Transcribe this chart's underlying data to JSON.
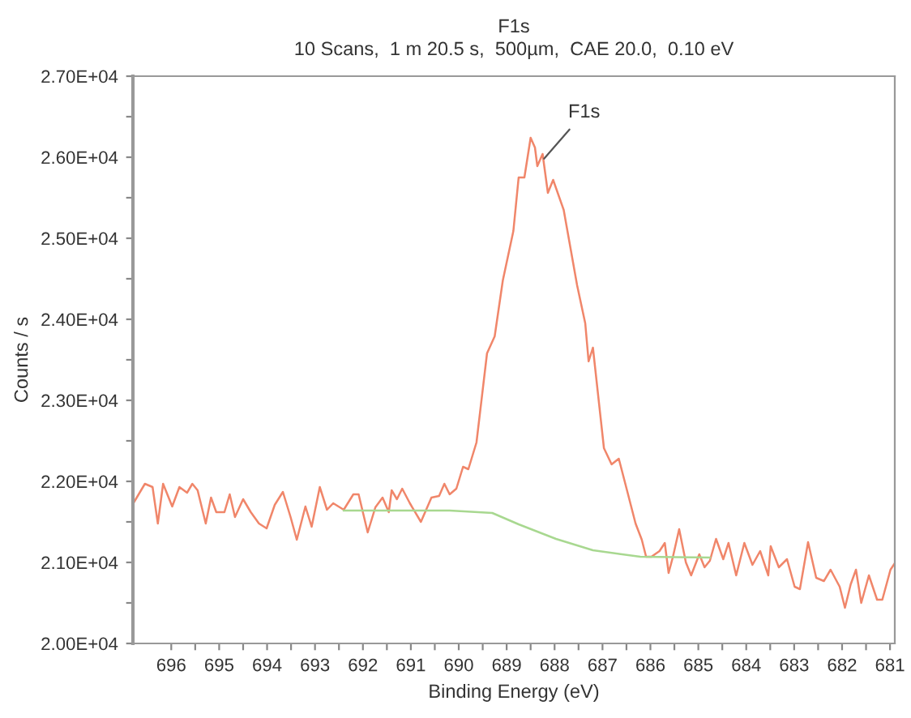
{
  "chart_data": {
    "type": "line",
    "title": "F1s",
    "subtitle": "10 Scans,  1 m 20.5 s,  500µm,  CAE 20.0,  0.10 eV",
    "xlabel": "Binding Energy (eV)",
    "ylabel": "Counts / s",
    "xlim": [
      696.8,
      680.9
    ],
    "ylim": [
      20000,
      27000
    ],
    "xticks": [
      696,
      {
        "value": 695.5,
        "label": null
      },
      695,
      {
        "value": 694.5,
        "label": null
      },
      694,
      {
        "value": 693.5,
        "label": null
      },
      693,
      {
        "value": 692.5,
        "label": null
      },
      692,
      {
        "value": 691.5,
        "label": null
      },
      691,
      {
        "value": 690.5,
        "label": null
      },
      690,
      {
        "value": 689.5,
        "label": null
      },
      689,
      {
        "value": 688.5,
        "label": null
      },
      688,
      {
        "value": 687.5,
        "label": null
      },
      687,
      {
        "value": 686.5,
        "label": null
      },
      686,
      {
        "value": 685.5,
        "label": null
      },
      685,
      {
        "value": 684.5,
        "label": null
      },
      684,
      {
        "value": 683.5,
        "label": null
      },
      683,
      {
        "value": 682.5,
        "label": null
      },
      682,
      {
        "value": 681.5,
        "label": null
      },
      681
    ],
    "yticks": [
      {
        "value": 20000,
        "label": "2.00E+04"
      },
      {
        "value": 20500,
        "label": null
      },
      {
        "value": 21000,
        "label": "2.10E+04"
      },
      {
        "value": 21500,
        "label": null
      },
      {
        "value": 22000,
        "label": "2.20E+04"
      },
      {
        "value": 22500,
        "label": null
      },
      {
        "value": 23000,
        "label": "2.30E+04"
      },
      {
        "value": 23500,
        "label": null
      },
      {
        "value": 24000,
        "label": "2.40E+04"
      },
      {
        "value": 24500,
        "label": null
      },
      {
        "value": 25000,
        "label": "2.50E+04"
      },
      {
        "value": 25500,
        "label": null
      },
      {
        "value": 26000,
        "label": "2.60E+04"
      },
      {
        "value": 26500,
        "label": null
      },
      {
        "value": 27000,
        "label": "2.70E+04"
      }
    ],
    "grid": false,
    "legend": false,
    "marker": "none",
    "line_style": "solid",
    "annotations": [
      {
        "text": "F1s",
        "x": 688.28,
        "y": 25940
      }
    ],
    "series": [
      {
        "color": "#f0866a",
        "x": [
          696.77,
          696.55,
          696.39,
          696.28,
          696.17,
          695.98,
          695.83,
          695.67,
          695.56,
          695.45,
          695.28,
          695.17,
          695.06,
          694.89,
          694.78,
          694.67,
          694.5,
          694.34,
          694.17,
          694.01,
          693.84,
          693.67,
          693.51,
          693.38,
          693.2,
          693.07,
          692.9,
          692.75,
          692.62,
          692.4,
          692.2,
          692.09,
          691.9,
          691.74,
          691.59,
          691.46,
          691.4,
          691.29,
          691.18,
          691.02,
          690.79,
          690.57,
          690.41,
          690.3,
          690.19,
          690.05,
          689.91,
          689.8,
          689.63,
          689.41,
          689.25,
          689.08,
          688.86,
          688.75,
          688.63,
          688.5,
          688.41,
          688.36,
          688.25,
          688.14,
          688.03,
          687.81,
          687.53,
          687.36,
          687.29,
          687.2,
          686.97,
          686.81,
          686.66,
          686.48,
          686.31,
          686.18,
          686.09,
          685.98,
          685.81,
          685.7,
          685.62,
          685.53,
          685.4,
          685.26,
          685.15,
          684.98,
          684.87,
          684.76,
          684.63,
          684.48,
          684.37,
          684.21,
          684.04,
          683.87,
          683.71,
          683.54,
          683.49,
          683.32,
          683.15,
          682.99,
          682.88,
          682.71,
          682.54,
          682.38,
          682.24,
          682.05,
          681.94,
          681.82,
          681.71,
          681.6,
          681.44,
          681.27,
          681.16,
          680.99,
          680.9
        ],
        "values": [
          21750,
          21970,
          21930,
          21480,
          21970,
          21690,
          21930,
          21860,
          21970,
          21890,
          21480,
          21800,
          21620,
          21620,
          21840,
          21560,
          21780,
          21620,
          21480,
          21420,
          21710,
          21870,
          21560,
          21280,
          21690,
          21440,
          21930,
          21650,
          21730,
          21650,
          21840,
          21840,
          21370,
          21680,
          21800,
          21620,
          21890,
          21780,
          21910,
          21730,
          21500,
          21800,
          21820,
          21970,
          21840,
          21910,
          22180,
          22150,
          22480,
          23580,
          23790,
          24480,
          25090,
          25750,
          25750,
          26240,
          26120,
          25890,
          26040,
          25560,
          25720,
          25350,
          24420,
          23950,
          23480,
          23650,
          22410,
          22210,
          22280,
          21870,
          21480,
          21280,
          21070,
          21070,
          21140,
          21240,
          20870,
          21070,
          21410,
          21000,
          20840,
          21100,
          20940,
          21020,
          21290,
          21040,
          21240,
          20840,
          21240,
          20970,
          21140,
          20840,
          21200,
          20940,
          21040,
          20700,
          20670,
          21250,
          20810,
          20770,
          20910,
          20700,
          20440,
          20730,
          20910,
          20500,
          20840,
          20540,
          20540,
          20910,
          20990
        ]
      },
      {
        "color": "#a8d890",
        "x": [
          692.4,
          691.0,
          690.19,
          689.3,
          688.75,
          687.97,
          687.2,
          686.21,
          684.76
        ],
        "values": [
          21640,
          21640,
          21640,
          21610,
          21470,
          21290,
          21150,
          21070,
          21060
        ]
      }
    ]
  }
}
